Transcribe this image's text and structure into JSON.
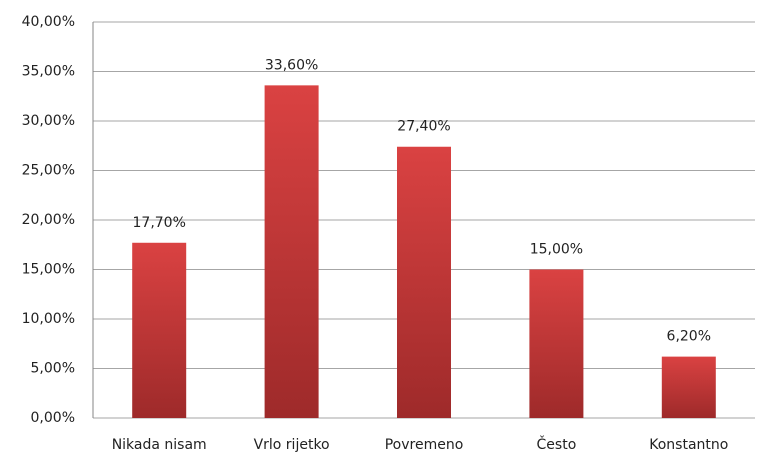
{
  "chart_data": {
    "type": "bar",
    "categories": [
      "Nikada nisam",
      "Vrlo rijetko",
      "Povremeno",
      "Često",
      "Konstantno"
    ],
    "values": [
      17.7,
      33.6,
      27.4,
      15,
      6.2
    ],
    "value_labels": [
      "17,70%",
      "33,60%",
      "27,40%",
      "15,00%",
      "6,20%"
    ],
    "color": "#c83232",
    "ylim": [
      0,
      40
    ],
    "yticks": [
      {
        "value": 0,
        "label": "0,00%"
      },
      {
        "value": 5,
        "label": "5,00%"
      },
      {
        "value": 10,
        "label": "10,00%"
      },
      {
        "value": 15,
        "label": "15,00%"
      },
      {
        "value": 20,
        "label": "20,00%"
      },
      {
        "value": 25,
        "label": "25,00%"
      },
      {
        "value": 30,
        "label": "30,00%"
      },
      {
        "value": 35,
        "label": "35,00%"
      },
      {
        "value": 40,
        "label": "40,00%"
      }
    ],
    "grid": true
  }
}
